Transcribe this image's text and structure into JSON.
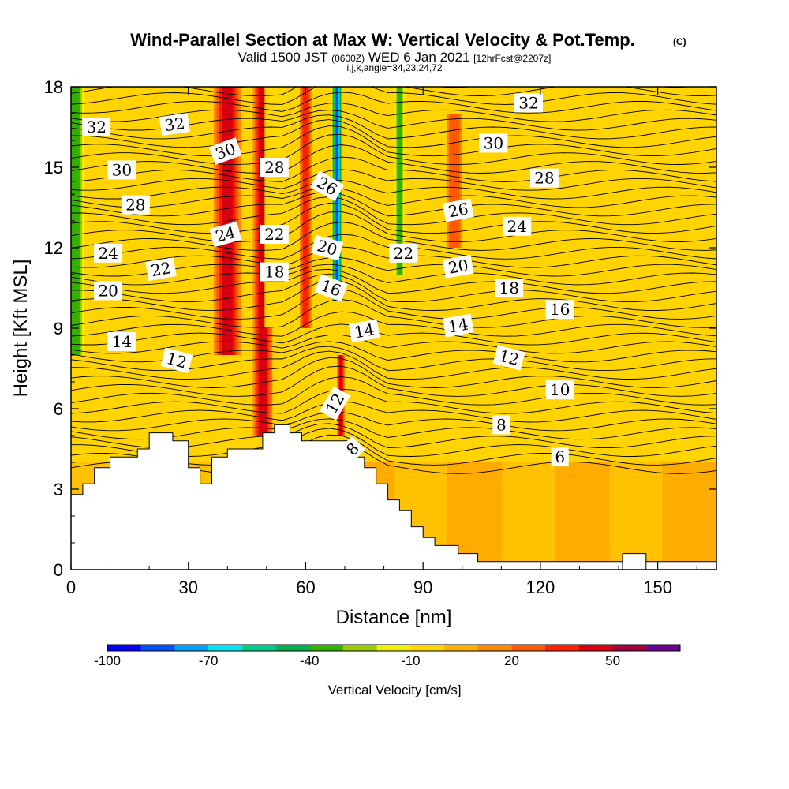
{
  "chart_data": {
    "type": "heatmap",
    "title": "Wind-Parallel Section at Max W: Vertical Velocity & Pot.Temp.",
    "title_mark": "(C)",
    "subtitle_parts": {
      "valid": "Valid 1500 JST",
      "utc": "(0600Z)",
      "date": "WED 6 Jan 2021",
      "forecast": "[12hrFcst@2207z]"
    },
    "subtitle2": "i,j,k,angle=34,23,24,72",
    "xlabel": "Distance [nm]",
    "ylabel": "Height [Kft MSL]",
    "xlim": [
      0,
      165
    ],
    "ylim": [
      0,
      18
    ],
    "xticks": [
      "0",
      "30",
      "60",
      "90",
      "120",
      "150"
    ],
    "yticks": [
      "0",
      "3",
      "6",
      "9",
      "12",
      "15",
      "18"
    ],
    "colorbar": {
      "label": "Vertical Velocity [cm/s]",
      "tick_labels": [
        "-100",
        "-70",
        "-40",
        "-10",
        "20",
        "50"
      ],
      "tick_values": [
        -100,
        -70,
        -40,
        -10,
        20,
        50
      ],
      "min": -100,
      "step": 10,
      "colors": [
        "#0000ff",
        "#0050ff",
        "#00a0ff",
        "#00e6f0",
        "#00cc90",
        "#00b050",
        "#34b000",
        "#98cc00",
        "#f0f000",
        "#ffd800",
        "#ffb000",
        "#ff8800",
        "#ff5a00",
        "#ff2000",
        "#d80010",
        "#a00040",
        "#6a0090"
      ]
    },
    "terrain": [
      [
        0,
        2.8
      ],
      [
        3,
        2.8
      ],
      [
        3,
        3.2
      ],
      [
        6,
        3.2
      ],
      [
        6,
        3.8
      ],
      [
        10,
        3.8
      ],
      [
        10,
        4.2
      ],
      [
        17,
        4.2
      ],
      [
        17,
        4.5
      ],
      [
        20,
        4.5
      ],
      [
        20,
        5.1
      ],
      [
        26,
        5.1
      ],
      [
        26,
        4.8
      ],
      [
        30,
        4.8
      ],
      [
        30,
        3.8
      ],
      [
        33,
        3.8
      ],
      [
        33,
        3.2
      ],
      [
        36,
        3.2
      ],
      [
        36,
        4.2
      ],
      [
        40,
        4.2
      ],
      [
        40,
        4.5
      ],
      [
        49,
        4.5
      ],
      [
        49,
        5.1
      ],
      [
        52,
        5.1
      ],
      [
        52,
        5.4
      ],
      [
        56,
        5.4
      ],
      [
        56,
        5.1
      ],
      [
        59,
        5.1
      ],
      [
        59,
        4.8
      ],
      [
        72,
        4.8
      ],
      [
        72,
        4.2
      ],
      [
        75,
        4.2
      ],
      [
        75,
        3.8
      ],
      [
        78,
        3.8
      ],
      [
        78,
        3.2
      ],
      [
        81,
        3.2
      ],
      [
        81,
        2.6
      ],
      [
        84,
        2.6
      ],
      [
        84,
        2.2
      ],
      [
        87,
        2.2
      ],
      [
        87,
        1.6
      ],
      [
        90,
        1.6
      ],
      [
        90,
        1.2
      ],
      [
        93,
        1.2
      ],
      [
        93,
        0.9
      ],
      [
        99,
        0.9
      ],
      [
        99,
        0.6
      ],
      [
        104,
        0.6
      ],
      [
        104,
        0.3
      ],
      [
        165,
        0.3
      ]
    ],
    "terrain_bump": [
      [
        141,
        0.3
      ],
      [
        141,
        0.6
      ],
      [
        147,
        0.6
      ],
      [
        147,
        0.3
      ]
    ],
    "velocity_features": [
      {
        "x": 1,
        "y1": 8,
        "y2": 18,
        "w": 6,
        "v": -40
      },
      {
        "x": 40,
        "y1": 8,
        "y2": 18,
        "w": 7,
        "v": 40
      },
      {
        "x": 49,
        "y1": 5,
        "y2": 18,
        "w": 5,
        "v": 40
      },
      {
        "x": 52,
        "y1": 9,
        "y2": 18,
        "w": 5,
        "v": -10
      },
      {
        "x": 60,
        "y1": 9,
        "y2": 18,
        "w": 3,
        "v": 30
      },
      {
        "x": 68,
        "y1": 10,
        "y2": 18,
        "w": 3,
        "v": -90
      },
      {
        "x": 69,
        "y1": 5,
        "y2": 8,
        "w": 2,
        "v": 40
      },
      {
        "x": 84,
        "y1": 11,
        "y2": 18,
        "w": 3,
        "v": -40
      },
      {
        "x": 98,
        "y1": 12,
        "y2": 17,
        "w": 4,
        "v": 20
      }
    ],
    "isotherm_labels": [
      {
        "text": "32",
        "x": 6.5,
        "y": 16.5,
        "a": 0
      },
      {
        "text": "32",
        "x": 26.5,
        "y": 16.6,
        "a": -8
      },
      {
        "text": "30",
        "x": 39.5,
        "y": 15.6,
        "a": -20
      },
      {
        "text": "30",
        "x": 13,
        "y": 14.9,
        "a": 0
      },
      {
        "text": "28",
        "x": 52,
        "y": 15.0,
        "a": 0
      },
      {
        "text": "26",
        "x": 65.5,
        "y": 14.3,
        "a": 30
      },
      {
        "text": "28",
        "x": 16.5,
        "y": 13.6,
        "a": 0
      },
      {
        "text": "24",
        "x": 39.5,
        "y": 12.5,
        "a": -15
      },
      {
        "text": "22",
        "x": 52,
        "y": 12.5,
        "a": 0
      },
      {
        "text": "20",
        "x": 65.5,
        "y": 12.0,
        "a": 15
      },
      {
        "text": "22",
        "x": 85,
        "y": 11.8,
        "a": 0
      },
      {
        "text": "24",
        "x": 9.5,
        "y": 11.8,
        "a": 0
      },
      {
        "text": "22",
        "x": 23,
        "y": 11.2,
        "a": -10
      },
      {
        "text": "18",
        "x": 52,
        "y": 11.1,
        "a": 0
      },
      {
        "text": "16",
        "x": 66.5,
        "y": 10.5,
        "a": 20
      },
      {
        "text": "20",
        "x": 9.5,
        "y": 10.4,
        "a": 0
      },
      {
        "text": "14",
        "x": 75,
        "y": 8.9,
        "a": -10
      },
      {
        "text": "14",
        "x": 13,
        "y": 8.5,
        "a": 0
      },
      {
        "text": "12",
        "x": 27,
        "y": 7.8,
        "a": 15
      },
      {
        "text": "12",
        "x": 67.5,
        "y": 6.2,
        "a": -60
      },
      {
        "text": "8",
        "x": 72,
        "y": 4.5,
        "a": -45
      },
      {
        "text": "26",
        "x": 99,
        "y": 13.4,
        "a": -10
      },
      {
        "text": "24",
        "x": 114,
        "y": 12.8,
        "a": 0
      },
      {
        "text": "20",
        "x": 99,
        "y": 11.3,
        "a": -10
      },
      {
        "text": "18",
        "x": 112,
        "y": 10.5,
        "a": 0
      },
      {
        "text": "16",
        "x": 125,
        "y": 9.7,
        "a": 0
      },
      {
        "text": "14",
        "x": 99,
        "y": 9.1,
        "a": -10
      },
      {
        "text": "12",
        "x": 112,
        "y": 7.9,
        "a": 15
      },
      {
        "text": "10",
        "x": 125,
        "y": 6.7,
        "a": 0
      },
      {
        "text": "8",
        "x": 110,
        "y": 5.4,
        "a": 0
      },
      {
        "text": "6",
        "x": 125,
        "y": 4.2,
        "a": 0
      },
      {
        "text": "32",
        "x": 117,
        "y": 17.4,
        "a": 0
      },
      {
        "text": "30",
        "x": 108,
        "y": 15.9,
        "a": 0
      },
      {
        "text": "28",
        "x": 121,
        "y": 14.6,
        "a": 0
      }
    ]
  }
}
